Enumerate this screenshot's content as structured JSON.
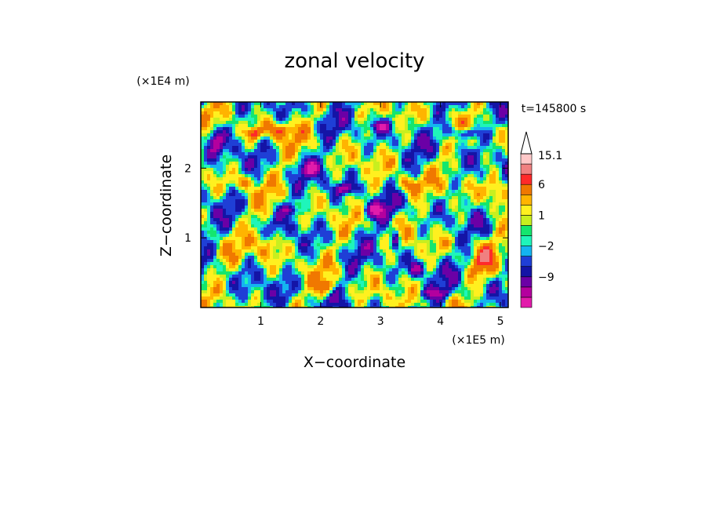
{
  "chart_data": {
    "type": "heatmap",
    "title": "zonal velocity",
    "xlabel": "X−coordinate",
    "ylabel": "Z−coordinate",
    "x_scale_label": "(×1E5 m)",
    "y_scale_label": "(×1E4 m)",
    "time_label": "t=145800 s",
    "xlim": [
      0,
      5.13
    ],
    "ylim": [
      0,
      2.95
    ],
    "x_ticks": [
      {
        "value": 1,
        "label": "1"
      },
      {
        "value": 2,
        "label": "2"
      },
      {
        "value": 3,
        "label": "3"
      },
      {
        "value": 4,
        "label": "4"
      },
      {
        "value": 5,
        "label": "5"
      }
    ],
    "y_ticks": [
      {
        "value": 1,
        "label": "1"
      },
      {
        "value": 2,
        "label": "2"
      }
    ],
    "colorbar": {
      "levels": [
        -15,
        -12,
        -9,
        -6,
        -4,
        -2,
        -1,
        0,
        1,
        2,
        4,
        6,
        9,
        12,
        15.1
      ],
      "colors": [
        "#e21cab",
        "#b4009e",
        "#6b00a6",
        "#1414a6",
        "#1f3fd6",
        "#14b4f0",
        "#1ff5ba",
        "#14e66e",
        "#c8ef1f",
        "#fff01f",
        "#ffb400",
        "#f07800",
        "#ff2a2a",
        "#f08080",
        "#ffc8c8"
      ],
      "extend_top": true,
      "labels": [
        {
          "value": 15.1,
          "label": "15.1"
        },
        {
          "value": 6,
          "label": "6"
        },
        {
          "value": 1,
          "label": "1"
        },
        {
          "value": -2,
          "label": "−2"
        },
        {
          "value": -9,
          "label": "−9"
        }
      ]
    }
  }
}
